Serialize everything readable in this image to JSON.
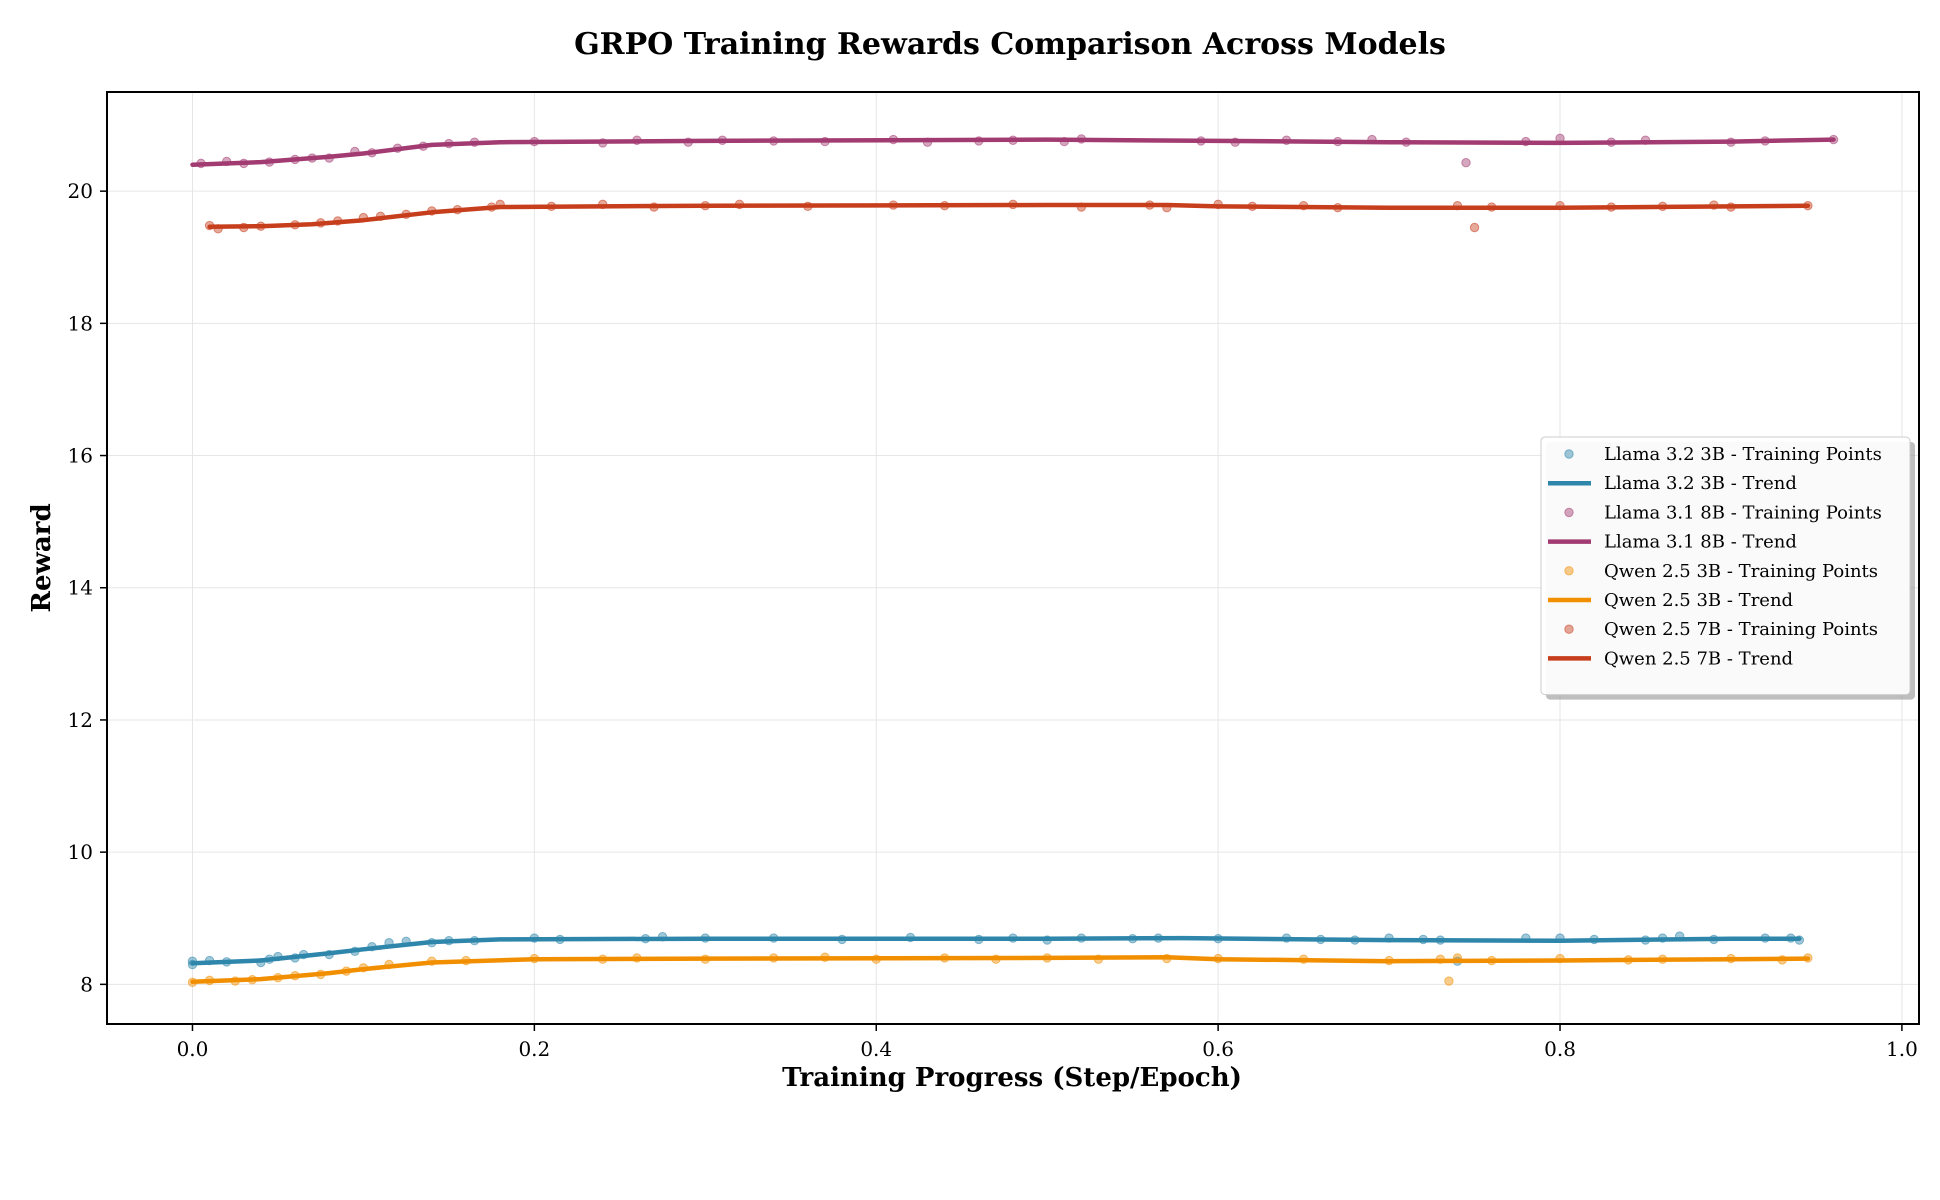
{
  "chart_data": {
    "type": "line",
    "title": "GRPO Training Rewards Comparison Across Models",
    "xlabel": "Training Progress (Step/Epoch)",
    "ylabel": "Reward",
    "xlim": [
      -0.05,
      1.01
    ],
    "ylim": [
      7.4,
      21.5
    ],
    "xticks": [
      0.0,
      0.2,
      0.4,
      0.6,
      0.8,
      1.0
    ],
    "xtick_labels": [
      "0.0",
      "0.2",
      "0.4",
      "0.6",
      "0.8",
      "1.0"
    ],
    "yticks": [
      8,
      10,
      12,
      14,
      16,
      18,
      20
    ],
    "ytick_labels": [
      "8",
      "10",
      "12",
      "14",
      "16",
      "18",
      "20"
    ],
    "grid": true,
    "legend_position": "center-right",
    "series": [
      {
        "name": "Llama 3.2 3B",
        "color": "#2E86AB",
        "point_label": "Llama 3.2 3B - Training Points",
        "trend_label": "Llama 3.2 3B - Trend",
        "trend": [
          [
            0.0,
            8.32
          ],
          [
            0.04,
            8.36
          ],
          [
            0.08,
            8.47
          ],
          [
            0.1,
            8.53
          ],
          [
            0.14,
            8.64
          ],
          [
            0.18,
            8.68
          ],
          [
            0.3,
            8.69
          ],
          [
            0.5,
            8.69
          ],
          [
            0.58,
            8.7
          ],
          [
            0.7,
            8.67
          ],
          [
            0.8,
            8.66
          ],
          [
            0.9,
            8.69
          ],
          [
            0.94,
            8.69
          ]
        ],
        "points": [
          [
            0.0,
            8.35
          ],
          [
            0.0,
            8.3
          ],
          [
            0.01,
            8.36
          ],
          [
            0.02,
            8.34
          ],
          [
            0.04,
            8.33
          ],
          [
            0.045,
            8.38
          ],
          [
            0.05,
            8.42
          ],
          [
            0.06,
            8.4
          ],
          [
            0.065,
            8.45
          ],
          [
            0.08,
            8.45
          ],
          [
            0.095,
            8.5
          ],
          [
            0.105,
            8.57
          ],
          [
            0.115,
            8.63
          ],
          [
            0.125,
            8.65
          ],
          [
            0.14,
            8.63
          ],
          [
            0.15,
            8.66
          ],
          [
            0.165,
            8.66
          ],
          [
            0.2,
            8.7
          ],
          [
            0.215,
            8.68
          ],
          [
            0.265,
            8.69
          ],
          [
            0.275,
            8.72
          ],
          [
            0.3,
            8.7
          ],
          [
            0.34,
            8.7
          ],
          [
            0.38,
            8.68
          ],
          [
            0.42,
            8.71
          ],
          [
            0.46,
            8.68
          ],
          [
            0.48,
            8.7
          ],
          [
            0.5,
            8.67
          ],
          [
            0.52,
            8.7
          ],
          [
            0.55,
            8.69
          ],
          [
            0.565,
            8.7
          ],
          [
            0.6,
            8.69
          ],
          [
            0.64,
            8.7
          ],
          [
            0.66,
            8.68
          ],
          [
            0.68,
            8.67
          ],
          [
            0.7,
            8.7
          ],
          [
            0.72,
            8.68
          ],
          [
            0.73,
            8.67
          ],
          [
            0.74,
            8.35
          ],
          [
            0.78,
            8.7
          ],
          [
            0.8,
            8.7
          ],
          [
            0.82,
            8.68
          ],
          [
            0.85,
            8.67
          ],
          [
            0.86,
            8.7
          ],
          [
            0.87,
            8.73
          ],
          [
            0.89,
            8.68
          ],
          [
            0.92,
            8.7
          ],
          [
            0.935,
            8.7
          ],
          [
            0.94,
            8.67
          ]
        ]
      },
      {
        "name": "Llama 3.1 8B",
        "color": "#A23B72",
        "point_label": "Llama 3.1 8B - Training Points",
        "trend_label": "Llama 3.1 8B - Trend",
        "trend": [
          [
            0.0,
            20.4
          ],
          [
            0.04,
            20.44
          ],
          [
            0.08,
            20.52
          ],
          [
            0.1,
            20.57
          ],
          [
            0.14,
            20.7
          ],
          [
            0.18,
            20.74
          ],
          [
            0.3,
            20.76
          ],
          [
            0.5,
            20.78
          ],
          [
            0.6,
            20.76
          ],
          [
            0.7,
            20.74
          ],
          [
            0.8,
            20.73
          ],
          [
            0.9,
            20.75
          ],
          [
            0.96,
            20.78
          ]
        ],
        "points": [
          [
            0.005,
            20.42
          ],
          [
            0.02,
            20.45
          ],
          [
            0.03,
            20.42
          ],
          [
            0.045,
            20.44
          ],
          [
            0.06,
            20.48
          ],
          [
            0.07,
            20.5
          ],
          [
            0.08,
            20.5
          ],
          [
            0.095,
            20.6
          ],
          [
            0.105,
            20.58
          ],
          [
            0.12,
            20.65
          ],
          [
            0.135,
            20.68
          ],
          [
            0.15,
            20.72
          ],
          [
            0.165,
            20.74
          ],
          [
            0.2,
            20.75
          ],
          [
            0.24,
            20.73
          ],
          [
            0.26,
            20.77
          ],
          [
            0.29,
            20.74
          ],
          [
            0.31,
            20.77
          ],
          [
            0.34,
            20.76
          ],
          [
            0.37,
            20.75
          ],
          [
            0.41,
            20.78
          ],
          [
            0.43,
            20.74
          ],
          [
            0.46,
            20.76
          ],
          [
            0.48,
            20.77
          ],
          [
            0.51,
            20.75
          ],
          [
            0.52,
            20.79
          ],
          [
            0.59,
            20.76
          ],
          [
            0.61,
            20.74
          ],
          [
            0.64,
            20.77
          ],
          [
            0.67,
            20.75
          ],
          [
            0.69,
            20.78
          ],
          [
            0.71,
            20.74
          ],
          [
            0.745,
            20.43
          ],
          [
            0.78,
            20.75
          ],
          [
            0.8,
            20.8
          ],
          [
            0.83,
            20.74
          ],
          [
            0.85,
            20.77
          ],
          [
            0.9,
            20.74
          ],
          [
            0.92,
            20.76
          ],
          [
            0.96,
            20.78
          ]
        ]
      },
      {
        "name": "Qwen 2.5 3B",
        "color": "#F18F01",
        "point_label": "Qwen 2.5 3B - Training Points",
        "trend_label": "Qwen 2.5 3B - Trend",
        "trend": [
          [
            0.0,
            8.04
          ],
          [
            0.04,
            8.08
          ],
          [
            0.08,
            8.17
          ],
          [
            0.1,
            8.23
          ],
          [
            0.14,
            8.33
          ],
          [
            0.2,
            8.38
          ],
          [
            0.3,
            8.39
          ],
          [
            0.5,
            8.4
          ],
          [
            0.57,
            8.41
          ],
          [
            0.6,
            8.38
          ],
          [
            0.7,
            8.35
          ],
          [
            0.8,
            8.36
          ],
          [
            0.9,
            8.38
          ],
          [
            0.945,
            8.39
          ]
        ],
        "points": [
          [
            0.0,
            8.03
          ],
          [
            0.01,
            8.06
          ],
          [
            0.025,
            8.05
          ],
          [
            0.035,
            8.07
          ],
          [
            0.05,
            8.1
          ],
          [
            0.06,
            8.13
          ],
          [
            0.075,
            8.15
          ],
          [
            0.09,
            8.2
          ],
          [
            0.1,
            8.25
          ],
          [
            0.115,
            8.3
          ],
          [
            0.14,
            8.35
          ],
          [
            0.16,
            8.36
          ],
          [
            0.2,
            8.39
          ],
          [
            0.24,
            8.38
          ],
          [
            0.26,
            8.4
          ],
          [
            0.3,
            8.38
          ],
          [
            0.34,
            8.4
          ],
          [
            0.37,
            8.41
          ],
          [
            0.4,
            8.38
          ],
          [
            0.44,
            8.4
          ],
          [
            0.47,
            8.38
          ],
          [
            0.5,
            8.4
          ],
          [
            0.53,
            8.38
          ],
          [
            0.57,
            8.39
          ],
          [
            0.6,
            8.39
          ],
          [
            0.65,
            8.38
          ],
          [
            0.7,
            8.36
          ],
          [
            0.73,
            8.38
          ],
          [
            0.735,
            8.05
          ],
          [
            0.74,
            8.4
          ],
          [
            0.76,
            8.36
          ],
          [
            0.8,
            8.39
          ],
          [
            0.84,
            8.37
          ],
          [
            0.86,
            8.38
          ],
          [
            0.9,
            8.39
          ],
          [
            0.93,
            8.37
          ],
          [
            0.945,
            8.4
          ]
        ]
      },
      {
        "name": "Qwen 2.5 7B",
        "color": "#C73E1D",
        "point_label": "Qwen 2.5 7B - Training Points",
        "trend_label": "Qwen 2.5 7B - Trend",
        "trend": [
          [
            0.01,
            19.46
          ],
          [
            0.04,
            19.47
          ],
          [
            0.07,
            19.5
          ],
          [
            0.1,
            19.56
          ],
          [
            0.14,
            19.68
          ],
          [
            0.18,
            19.76
          ],
          [
            0.3,
            19.78
          ],
          [
            0.5,
            19.79
          ],
          [
            0.57,
            19.79
          ],
          [
            0.6,
            19.77
          ],
          [
            0.7,
            19.75
          ],
          [
            0.8,
            19.75
          ],
          [
            0.9,
            19.77
          ],
          [
            0.945,
            19.78
          ]
        ],
        "points": [
          [
            0.01,
            19.48
          ],
          [
            0.015,
            19.43
          ],
          [
            0.03,
            19.45
          ],
          [
            0.04,
            19.47
          ],
          [
            0.06,
            19.49
          ],
          [
            0.075,
            19.52
          ],
          [
            0.085,
            19.55
          ],
          [
            0.1,
            19.6
          ],
          [
            0.11,
            19.62
          ],
          [
            0.125,
            19.65
          ],
          [
            0.14,
            19.7
          ],
          [
            0.155,
            19.72
          ],
          [
            0.175,
            19.76
          ],
          [
            0.18,
            19.8
          ],
          [
            0.21,
            19.77
          ],
          [
            0.24,
            19.8
          ],
          [
            0.27,
            19.76
          ],
          [
            0.3,
            19.78
          ],
          [
            0.32,
            19.8
          ],
          [
            0.36,
            19.77
          ],
          [
            0.41,
            19.79
          ],
          [
            0.44,
            19.78
          ],
          [
            0.48,
            19.8
          ],
          [
            0.52,
            19.76
          ],
          [
            0.56,
            19.79
          ],
          [
            0.57,
            19.75
          ],
          [
            0.6,
            19.8
          ],
          [
            0.62,
            19.77
          ],
          [
            0.65,
            19.78
          ],
          [
            0.67,
            19.75
          ],
          [
            0.74,
            19.78
          ],
          [
            0.75,
            19.45
          ],
          [
            0.76,
            19.76
          ],
          [
            0.8,
            19.78
          ],
          [
            0.83,
            19.76
          ],
          [
            0.86,
            19.77
          ],
          [
            0.89,
            19.79
          ],
          [
            0.9,
            19.76
          ],
          [
            0.945,
            19.78
          ]
        ]
      }
    ]
  }
}
